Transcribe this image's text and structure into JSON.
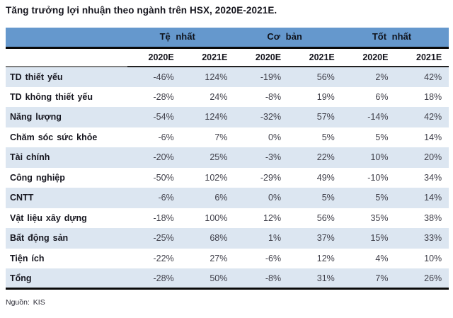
{
  "page": {
    "title": "Tăng trưởng lợi nhuận theo ngành trên HSX, 2020E-2021E.",
    "source": "Nguồn: KIS"
  },
  "colors": {
    "header_blue": "#6598CD",
    "row_shade_blue": "#DCE6F1",
    "border_black": "#0A0A0A",
    "label_text": "#16161F",
    "value_text": "#41414B"
  },
  "chart_data": {
    "type": "table",
    "title": "Tăng trưởng lợi nhuận theo ngành trên HSX, 2020E-2021E.",
    "column_groups": [
      "Tệ nhất",
      "Cơ bản",
      "Tốt nhất"
    ],
    "sub_columns": [
      "2020E",
      "2021E",
      "2020E",
      "2021E",
      "2020E",
      "2021E"
    ],
    "rows": [
      {
        "label": "TD thiết yếu",
        "values": [
          "-46%",
          "124%",
          "-19%",
          "56%",
          "2%",
          "42%"
        ]
      },
      {
        "label": "TD không thiết yếu",
        "values": [
          "-28%",
          "24%",
          "-8%",
          "19%",
          "6%",
          "18%"
        ]
      },
      {
        "label": "Năng lượng",
        "values": [
          "-54%",
          "124%",
          "-32%",
          "57%",
          "-14%",
          "42%"
        ]
      },
      {
        "label": "Chăm sóc sức khỏe",
        "values": [
          "-6%",
          "7%",
          "0%",
          "5%",
          "5%",
          "14%"
        ]
      },
      {
        "label": "Tài chính",
        "values": [
          "-20%",
          "25%",
          "-3%",
          "22%",
          "10%",
          "20%"
        ]
      },
      {
        "label": "Công nghiệp",
        "values": [
          "-50%",
          "102%",
          "-29%",
          "49%",
          "-10%",
          "34%"
        ]
      },
      {
        "label": "CNTT",
        "values": [
          "-6%",
          "6%",
          "0%",
          "5%",
          "5%",
          "14%"
        ]
      },
      {
        "label": "Vật liệu xây dựng",
        "values": [
          "-18%",
          "100%",
          "12%",
          "56%",
          "35%",
          "38%"
        ]
      },
      {
        "label": "Bất động sản",
        "values": [
          "-25%",
          "68%",
          "1%",
          "37%",
          "15%",
          "33%"
        ]
      },
      {
        "label": "Tiện ích",
        "values": [
          "-22%",
          "27%",
          "-6%",
          "12%",
          "4%",
          "10%"
        ]
      },
      {
        "label": "Tổng",
        "values": [
          "-28%",
          "50%",
          "-8%",
          "31%",
          "7%",
          "26%"
        ]
      }
    ],
    "source": "Nguồn: KIS",
    "layout": {
      "shaded_rows": "odd rows starting with first",
      "total_row_index": 10
    }
  }
}
